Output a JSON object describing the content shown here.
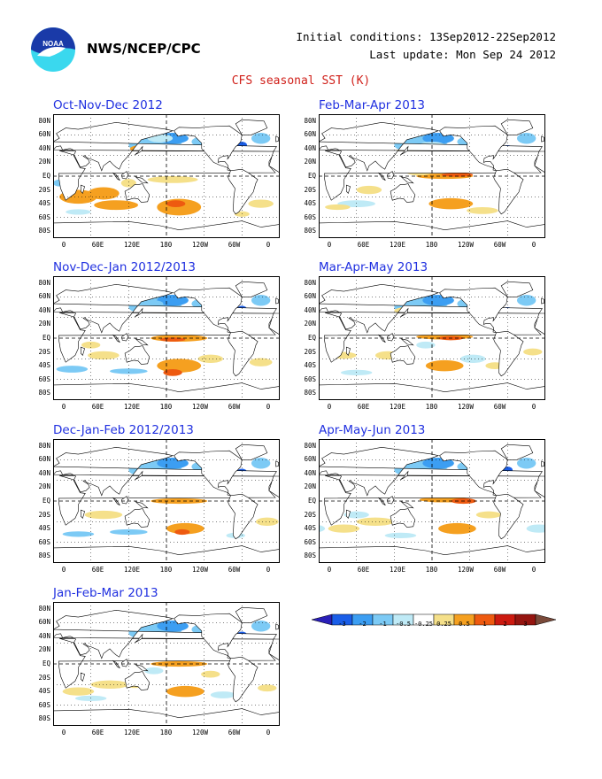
{
  "header": {
    "logo_text": "NOAA",
    "agency": "NWS/NCEP/CPC",
    "initial_conditions": "Initial conditions: 13Sep2012-22Sep2012",
    "last_update": "Last update: Mon Sep 24 2012",
    "product_title": "CFS seasonal SST (K)"
  },
  "lat_labels": [
    "80N",
    "60N",
    "40N",
    "20N",
    "EQ",
    "20S",
    "40S",
    "60S",
    "80S"
  ],
  "lon_labels": [
    "0",
    "60E",
    "120E",
    "180",
    "120W",
    "60W",
    "0"
  ],
  "panels": [
    {
      "title": "Oct-Nov-Dec 2012"
    },
    {
      "title": "Feb-Mar-Apr 2013"
    },
    {
      "title": "Nov-Dec-Jan 2012/2013"
    },
    {
      "title": "Mar-Apr-May 2013"
    },
    {
      "title": "Dec-Jan-Feb 2012/2013"
    },
    {
      "title": "Apr-May-Jun 2013"
    },
    {
      "title": "Jan-Feb-Mar 2013"
    }
  ],
  "colorbar": {
    "labels": [
      "-3",
      "-2",
      "-1",
      "-0.5",
      "-0.25",
      "0.25",
      "0.5",
      "1",
      "2",
      "3"
    ],
    "colors": [
      "#2a1fb8",
      "#1a5ee8",
      "#3c9ef2",
      "#7ccaf5",
      "#bfeaf6",
      "#ffffff",
      "#f5e08a",
      "#f5a020",
      "#ee5a10",
      "#cc1a10",
      "#951510",
      "#7a4a3a"
    ]
  }
}
